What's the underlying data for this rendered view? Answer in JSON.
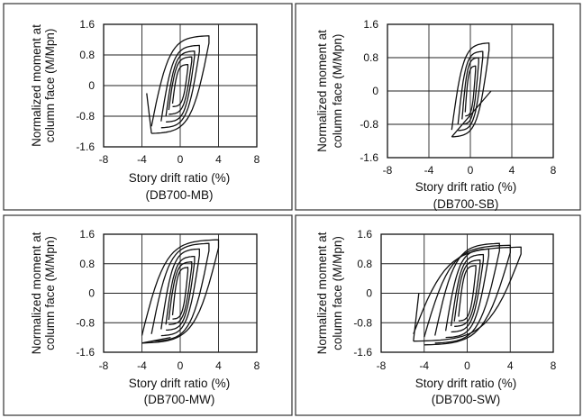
{
  "chart_data": [
    {
      "type": "line",
      "caption": "(DB700-MB)",
      "xlabel": "Story drift ratio (%)",
      "ylabel": [
        "Normalized moment at",
        "column face (M/Mpn)"
      ],
      "xlim": [
        -8,
        8
      ],
      "ylim": [
        -1.6,
        1.6
      ],
      "xticks": [
        "-8",
        "-4",
        "0",
        "4",
        "8"
      ],
      "yticks": [
        "1.6",
        "0.8",
        "0",
        "-0.8",
        "-1.6"
      ],
      "grid": true,
      "loop_peaks": [
        [
          0.8,
          0.55,
          -0.8,
          -0.55
        ],
        [
          1.2,
          0.75,
          -1.2,
          -0.75
        ],
        [
          1.5,
          0.9,
          -1.5,
          -0.95
        ],
        [
          2.0,
          1.05,
          -2.0,
          -1.1
        ],
        [
          3.0,
          1.3,
          -3.0,
          -1.25
        ]
      ],
      "end_point": [
        -3.5,
        -0.2
      ]
    },
    {
      "type": "line",
      "caption": "(DB700-SB)",
      "xlabel": "Story drift ratio (%)",
      "ylabel": [
        "Normalized moment at",
        "column face (M/Mpn)"
      ],
      "xlim": [
        -8,
        8
      ],
      "ylim": [
        -1.6,
        1.6
      ],
      "xticks": [
        "-8",
        "-4",
        "0",
        "4",
        "8"
      ],
      "yticks": [
        "1.6",
        "0.8",
        "0",
        "-0.8",
        "-1.6"
      ],
      "grid": true,
      "loop_peaks": [
        [
          0.5,
          0.6,
          -0.5,
          -0.6
        ],
        [
          0.8,
          0.8,
          -0.8,
          -0.8
        ],
        [
          1.2,
          0.95,
          -1.2,
          -0.95
        ],
        [
          1.8,
          1.15,
          -1.8,
          -1.1
        ]
      ],
      "end_point": [
        2.0,
        0.0
      ]
    },
    {
      "type": "line",
      "caption": "(DB700-MW)",
      "xlabel": "Story drift ratio (%)",
      "ylabel": [
        "Normalized moment at",
        "column face (M/Mpn)"
      ],
      "xlim": [
        -8,
        8
      ],
      "ylim": [
        -1.6,
        1.6
      ],
      "xticks": [
        "-8",
        "-4",
        "0",
        "4",
        "8"
      ],
      "yticks": [
        "1.6",
        "0.8",
        "0",
        "-0.8",
        "-1.6"
      ],
      "grid": true,
      "loop_peaks": [
        [
          0.8,
          0.7,
          -0.8,
          -0.7
        ],
        [
          1.2,
          0.85,
          -1.2,
          -0.85
        ],
        [
          1.5,
          1.0,
          -1.5,
          -1.0
        ],
        [
          2.0,
          1.2,
          -2.0,
          -1.15
        ],
        [
          3.0,
          1.35,
          -3.0,
          -1.3
        ],
        [
          4.0,
          1.45,
          -4.0,
          -1.35
        ]
      ],
      "end_point": [
        -1.0,
        -1.2
      ]
    },
    {
      "type": "line",
      "caption": "(DB700-SW)",
      "xlabel": "Story drift ratio (%)",
      "ylabel": [
        "Normalized moment at",
        "column face (M/Mpn)"
      ],
      "xlim": [
        -8,
        8
      ],
      "ylim": [
        -1.6,
        1.6
      ],
      "xticks": [
        "-8",
        "-4",
        "0",
        "4",
        "8"
      ],
      "yticks": [
        "1.6",
        "0.8",
        "0",
        "-0.8",
        "-1.6"
      ],
      "grid": true,
      "loop_peaks": [
        [
          0.8,
          0.75,
          -0.8,
          -0.75
        ],
        [
          1.2,
          0.9,
          -1.2,
          -0.9
        ],
        [
          1.5,
          1.05,
          -1.5,
          -1.05
        ],
        [
          2.0,
          1.2,
          -2.0,
          -1.2
        ],
        [
          3.0,
          1.35,
          -3.0,
          -1.35
        ],
        [
          4.0,
          1.3,
          -4.0,
          -1.4
        ],
        [
          5.0,
          1.25,
          -5.0,
          -1.3
        ]
      ],
      "end_point": [
        -4.5,
        0.0
      ]
    }
  ]
}
